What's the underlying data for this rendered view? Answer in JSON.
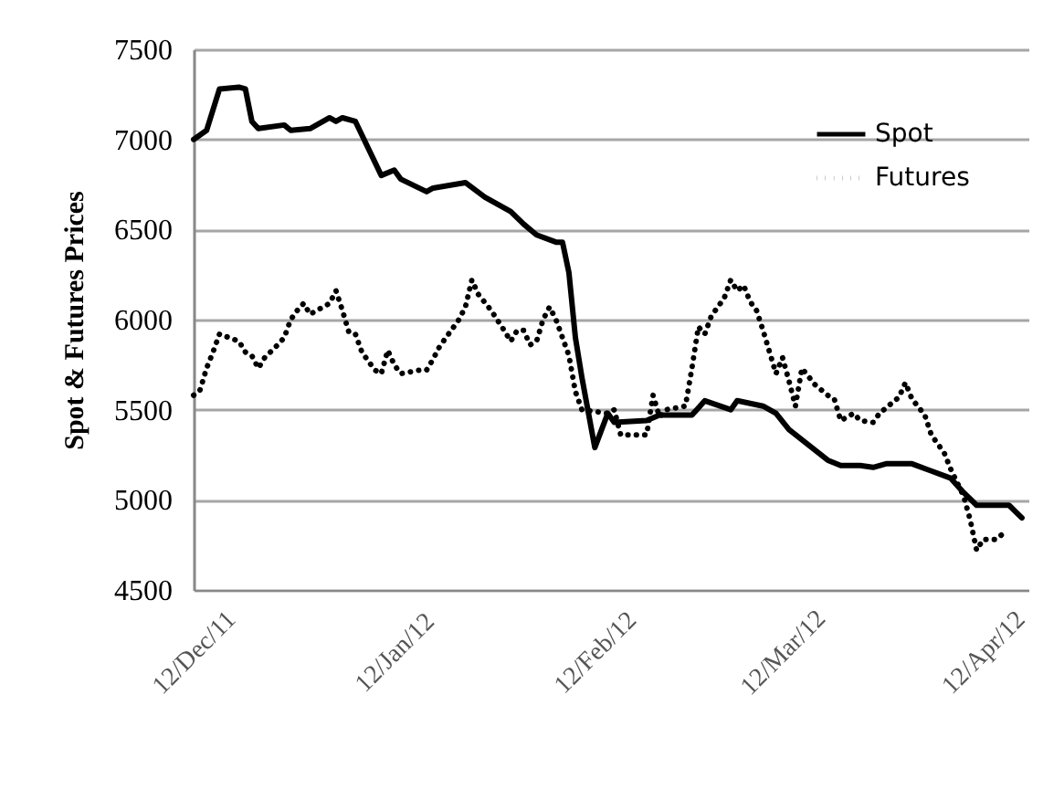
{
  "chart_data": {
    "type": "line",
    "ylabel": "Spot & Futures Prices",
    "xlim": [
      "2011-12-12",
      "2012-04-19"
    ],
    "xticks": [
      {
        "value": "2011-12-12",
        "label": "12/Dec/11"
      },
      {
        "value": "2012-01-12",
        "label": "12/Jan/12"
      },
      {
        "value": "2012-02-12",
        "label": "12/Feb/12"
      },
      {
        "value": "2012-03-12",
        "label": "12/Mar/12"
      },
      {
        "value": "2012-04-12",
        "label": "12/Apr/12"
      }
    ],
    "ylim": [
      4500,
      7500
    ],
    "yticks": [
      4500,
      5000,
      5500,
      6000,
      6500,
      7000,
      7500
    ],
    "grid": "y",
    "legend": "top right",
    "series": [
      {
        "name": "Spot",
        "color": "#000000",
        "line_style": "solid",
        "x": [
          "2011-12-12",
          "2011-12-14",
          "2011-12-16",
          "2011-12-19",
          "2011-12-20",
          "2011-12-21",
          "2011-12-22",
          "2011-12-26",
          "2011-12-27",
          "2011-12-30",
          "2012-01-02",
          "2012-01-03",
          "2012-01-04",
          "2012-01-06",
          "2012-01-10",
          "2012-01-12",
          "2012-01-13",
          "2012-01-17",
          "2012-01-18",
          "2012-01-23",
          "2012-01-26",
          "2012-01-30",
          "2012-02-01",
          "2012-02-03",
          "2012-02-06",
          "2012-02-07",
          "2012-02-08",
          "2012-02-09",
          "2012-02-10",
          "2012-02-12",
          "2012-02-14",
          "2012-02-15",
          "2012-02-20",
          "2012-02-22",
          "2012-02-27",
          "2012-02-29",
          "2012-03-04",
          "2012-03-05",
          "2012-03-09",
          "2012-03-11",
          "2012-03-13",
          "2012-03-19",
          "2012-03-21",
          "2012-03-24",
          "2012-03-26",
          "2012-03-28",
          "2012-04-01",
          "2012-04-07",
          "2012-04-09",
          "2012-04-11",
          "2012-04-16",
          "2012-04-18"
        ],
        "values": [
          7000,
          7050,
          7280,
          7290,
          7280,
          7100,
          7060,
          7080,
          7050,
          7060,
          7120,
          7100,
          7120,
          7100,
          6800,
          6830,
          6780,
          6710,
          6730,
          6760,
          6680,
          6600,
          6530,
          6470,
          6430,
          6430,
          6260,
          5900,
          5680,
          5290,
          5480,
          5430,
          5440,
          5470,
          5470,
          5550,
          5500,
          5550,
          5520,
          5480,
          5390,
          5220,
          5190,
          5190,
          5180,
          5200,
          5200,
          5120,
          5040,
          4970,
          4970,
          4900
        ]
      },
      {
        "name": "Futures",
        "color": "#000000",
        "line_style": "dotted",
        "x": [
          "2011-12-12",
          "2011-12-13",
          "2011-12-14",
          "2011-12-15",
          "2011-12-16",
          "2011-12-19",
          "2011-12-20",
          "2011-12-21",
          "2011-12-22",
          "2011-12-23",
          "2011-12-25",
          "2011-12-26",
          "2011-12-27",
          "2011-12-28",
          "2011-12-29",
          "2011-12-30",
          "2012-01-02",
          "2012-01-03",
          "2012-01-04",
          "2012-01-05",
          "2012-01-06",
          "2012-01-07",
          "2012-01-09",
          "2012-01-10",
          "2012-01-11",
          "2012-01-12",
          "2012-01-13",
          "2012-01-16",
          "2012-01-17",
          "2012-01-18",
          "2012-01-19",
          "2012-01-20",
          "2012-01-22",
          "2012-01-23",
          "2012-01-24",
          "2012-01-25",
          "2012-01-27",
          "2012-01-29",
          "2012-01-30",
          "2012-01-31",
          "2012-02-01",
          "2012-02-02",
          "2012-02-03",
          "2012-02-04",
          "2012-02-05",
          "2012-02-06",
          "2012-02-07",
          "2012-02-08",
          "2012-02-09",
          "2012-02-10",
          "2012-02-14",
          "2012-02-15",
          "2012-02-16",
          "2012-02-19",
          "2012-02-20",
          "2012-02-21",
          "2012-02-22",
          "2012-02-23",
          "2012-02-26",
          "2012-02-27",
          "2012-02-28",
          "2012-02-29",
          "2012-03-01",
          "2012-03-03",
          "2012-03-04",
          "2012-03-05",
          "2012-03-06",
          "2012-03-07",
          "2012-03-08",
          "2012-03-09",
          "2012-03-10",
          "2012-03-11",
          "2012-03-12",
          "2012-03-13",
          "2012-03-14",
          "2012-03-15",
          "2012-03-17",
          "2012-03-19",
          "2012-03-20",
          "2012-03-21",
          "2012-03-23",
          "2012-03-24",
          "2012-03-26",
          "2012-03-27",
          "2012-03-30",
          "2012-03-31",
          "2012-04-01",
          "2012-04-03",
          "2012-04-04",
          "2012-04-06",
          "2012-04-07",
          "2012-04-09",
          "2012-04-10",
          "2012-04-11",
          "2012-04-12",
          "2012-04-14",
          "2012-04-15"
        ],
        "values": [
          5580,
          5610,
          5730,
          5820,
          5920,
          5880,
          5820,
          5800,
          5730,
          5790,
          5860,
          5900,
          6000,
          6050,
          6090,
          6030,
          6090,
          6160,
          6050,
          5930,
          5920,
          5820,
          5720,
          5700,
          5830,
          5750,
          5700,
          5720,
          5720,
          5780,
          5850,
          5900,
          6000,
          6070,
          6220,
          6140,
          6050,
          5940,
          5880,
          5940,
          5940,
          5860,
          5880,
          6000,
          6070,
          6000,
          5900,
          5800,
          5600,
          5500,
          5480,
          5500,
          5360,
          5360,
          5360,
          5580,
          5460,
          5500,
          5520,
          5730,
          5960,
          5920,
          6020,
          6120,
          6220,
          6160,
          6190,
          6100,
          6050,
          5940,
          5820,
          5700,
          5790,
          5660,
          5520,
          5730,
          5640,
          5580,
          5560,
          5440,
          5480,
          5440,
          5430,
          5480,
          5570,
          5650,
          5560,
          5470,
          5360,
          5260,
          5170,
          5020,
          4890,
          4720,
          4780,
          4780,
          4810
        ]
      }
    ]
  }
}
